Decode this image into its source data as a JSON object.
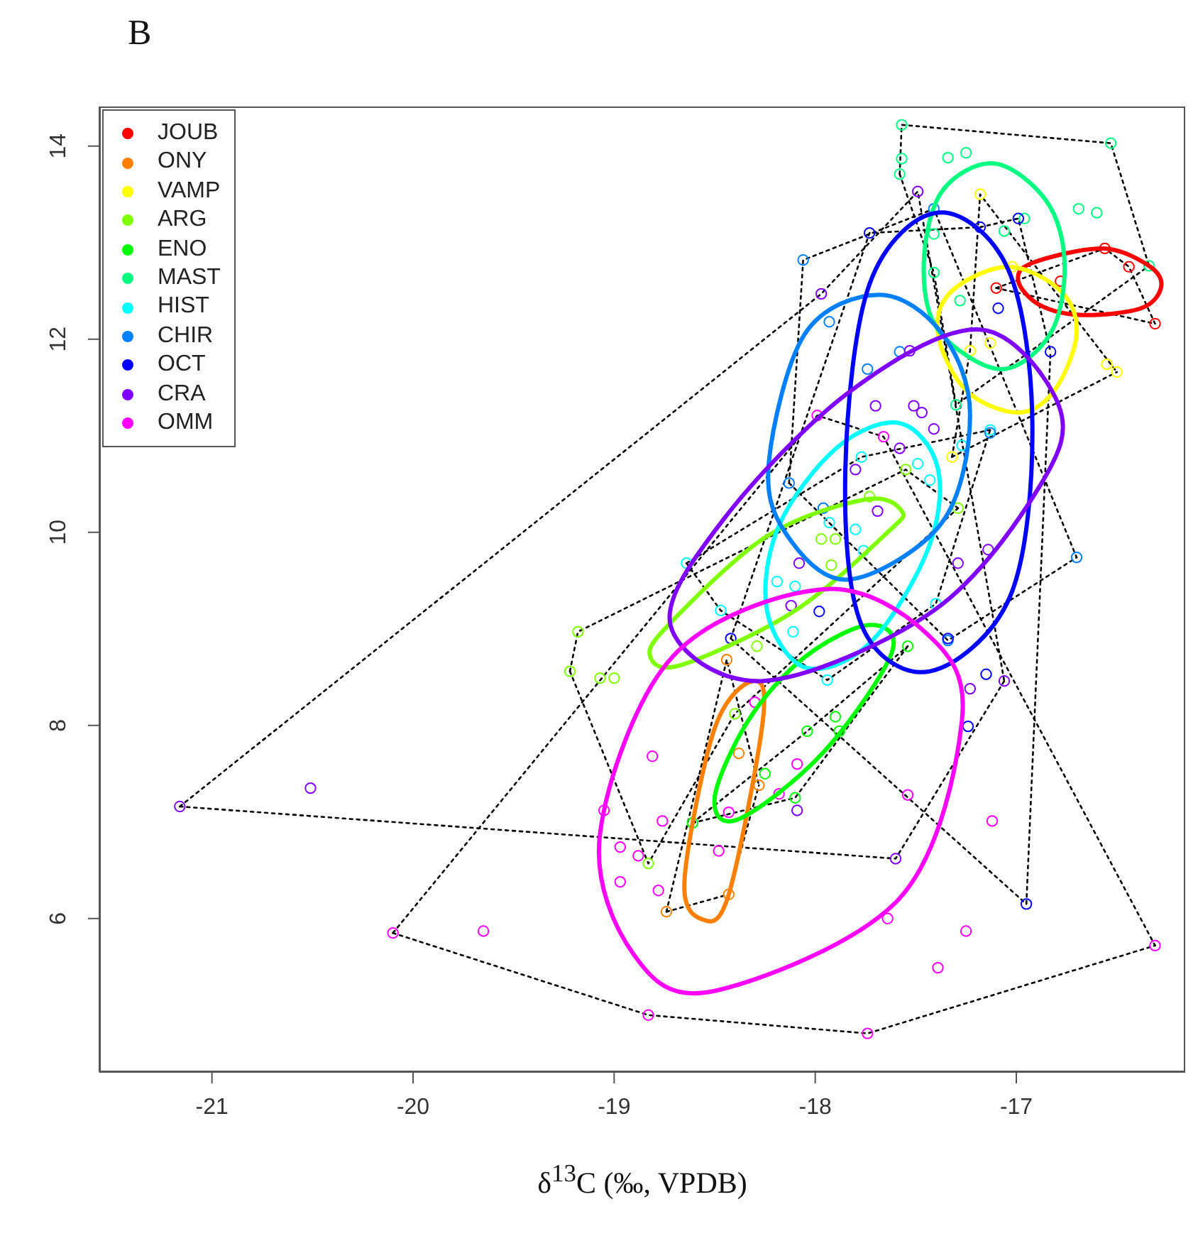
{
  "chart_data": {
    "type": "scatter",
    "title": "B",
    "xlabel": "δ$^{13}$C (‰, VPDB)",
    "xlim": [
      -21.56,
      -16.16
    ],
    "ylim": [
      4.41,
      14.41
    ],
    "xticks": [
      -21,
      -20,
      -19,
      -18,
      -17
    ],
    "yticks": [
      6,
      8,
      10,
      12,
      14
    ],
    "grid": false,
    "legend": "top left",
    "marker": "circle",
    "series": [
      {
        "type": "line",
        "marker": "none",
        "color": "#000000",
        "line_style": "dotted",
        "x": [
          -17.1,
          -16.56,
          -16.44,
          -16.31
        ],
        "values": [
          12.53,
          12.94,
          12.75,
          12.16
        ]
      },
      {
        "type": "line",
        "marker": "none",
        "color": "#000000",
        "line_style": "dotted",
        "x": [
          -17.1,
          -16.31
        ],
        "values": [
          12.53,
          12.16
        ]
      },
      {
        "type": "line",
        "marker": "none",
        "color": "#000000",
        "line_style": "dotted",
        "x": [
          -18.74,
          -18.44,
          -18.28
        ],
        "values": [
          6.07,
          8.68,
          7.38
        ]
      },
      {
        "type": "line",
        "marker": "none",
        "color": "#000000",
        "line_style": "dotted",
        "x": [
          -18.74,
          -18.43,
          -18.28
        ],
        "values": [
          6.07,
          6.25,
          7.38
        ]
      },
      {
        "type": "line",
        "marker": "none",
        "color": "#000000",
        "line_style": "dotted",
        "x": [
          -17.32,
          -17.23,
          -17.18,
          -16.5
        ],
        "values": [
          10.78,
          11.88,
          13.5,
          11.66
        ]
      },
      {
        "type": "line",
        "marker": "none",
        "color": "#000000",
        "line_style": "dotted",
        "x": [
          -17.32,
          -16.5
        ],
        "values": [
          10.78,
          11.66
        ]
      },
      {
        "type": "line",
        "marker": "none",
        "color": "#000000",
        "line_style": "dotted",
        "x": [
          -19.22,
          -19.18,
          -17.55,
          -17.29
        ],
        "values": [
          8.56,
          8.97,
          10.65,
          10.25
        ]
      },
      {
        "type": "line",
        "marker": "none",
        "color": "#000000",
        "line_style": "dotted",
        "x": [
          -19.22,
          -18.83,
          -18.4,
          -17.29
        ],
        "values": [
          8.56,
          6.57,
          8.12,
          10.25
        ]
      },
      {
        "type": "line",
        "marker": "none",
        "color": "#000000",
        "line_style": "dotted",
        "x": [
          -18.61,
          -18.04,
          -17.54
        ],
        "values": [
          6.99,
          7.94,
          8.82
        ]
      },
      {
        "type": "line",
        "marker": "none",
        "color": "#000000",
        "line_style": "dotted",
        "x": [
          -18.61,
          -18.1,
          -17.54
        ],
        "values": [
          6.99,
          7.25,
          8.82
        ]
      },
      {
        "type": "line",
        "marker": "none",
        "color": "#000000",
        "line_style": "dotted",
        "x": [
          -17.58,
          -17.57,
          -16.53,
          -16.34
        ],
        "values": [
          13.71,
          14.22,
          14.03,
          12.76
        ]
      },
      {
        "type": "line",
        "marker": "none",
        "color": "#000000",
        "line_style": "dotted",
        "x": [
          -17.58,
          -17.41,
          -17.3,
          -16.34
        ],
        "values": [
          13.71,
          12.69,
          11.32,
          12.76
        ]
      },
      {
        "type": "line",
        "marker": "none",
        "color": "#000000",
        "line_style": "dotted",
        "x": [
          -18.64,
          -17.77,
          -17.13
        ],
        "values": [
          9.68,
          10.78,
          11.06
        ]
      },
      {
        "type": "line",
        "marker": "none",
        "color": "#000000",
        "line_style": "dotted",
        "x": [
          -18.64,
          -18.47,
          -17.94,
          -17.4,
          -17.13
        ],
        "values": [
          9.68,
          9.19,
          8.47,
          9.26,
          11.06
        ]
      },
      {
        "type": "line",
        "marker": "none",
        "color": "#000000",
        "line_style": "dotted",
        "x": [
          -18.13,
          -18.06,
          -17.41,
          -16.7
        ],
        "values": [
          10.51,
          12.82,
          13.35,
          9.74
        ]
      },
      {
        "type": "line",
        "marker": "none",
        "color": "#000000",
        "line_style": "dotted",
        "x": [
          -18.13,
          -17.34,
          -16.7
        ],
        "values": [
          10.51,
          8.88,
          9.74
        ]
      },
      {
        "type": "line",
        "marker": "none",
        "color": "#000000",
        "line_style": "dotted",
        "x": [
          -18.42,
          -17.73,
          -17.18,
          -16.99,
          -16.83
        ],
        "values": [
          8.9,
          13.1,
          13.16,
          13.25,
          11.87
        ]
      },
      {
        "type": "line",
        "marker": "none",
        "color": "#000000",
        "line_style": "dotted",
        "x": [
          -18.42,
          -16.95,
          -16.83
        ],
        "values": [
          8.9,
          6.15,
          11.87
        ]
      },
      {
        "type": "line",
        "marker": "none",
        "color": "#000000",
        "line_style": "dotted",
        "x": [
          -21.16,
          -17.97,
          -17.49,
          -17.06
        ],
        "values": [
          7.16,
          12.47,
          13.53,
          8.46
        ]
      },
      {
        "type": "line",
        "marker": "none",
        "color": "#000000",
        "line_style": "dotted",
        "x": [
          -21.16,
          -17.6,
          -17.06
        ],
        "values": [
          7.16,
          6.62,
          8.46
        ]
      },
      {
        "type": "line",
        "marker": "none",
        "color": "#000000",
        "line_style": "dotted",
        "x": [
          -20.1,
          -17.99,
          -17.66,
          -16.31
        ],
        "values": [
          5.85,
          11.21,
          10.99,
          5.72
        ]
      },
      {
        "type": "line",
        "marker": "none",
        "color": "#000000",
        "line_style": "dotted",
        "x": [
          -20.1,
          -18.83,
          -17.74,
          -16.31
        ],
        "values": [
          5.85,
          5.0,
          4.81,
          5.72
        ]
      },
      {
        "name": "JOUB",
        "color": "#ff0000",
        "x": [
          -16.56,
          -16.44,
          -16.78,
          -17.1,
          -16.31
        ],
        "values": [
          12.94,
          12.75,
          12.6,
          12.53,
          12.16
        ]
      },
      {
        "name": "ONY",
        "color": "#ff8000",
        "x": [
          -18.44,
          -18.38,
          -18.28,
          -18.74,
          -18.43
        ],
        "values": [
          8.68,
          7.71,
          7.38,
          6.07,
          6.25
        ]
      },
      {
        "name": "VAMP",
        "color": "#ffff00",
        "x": [
          -17.18,
          -17.23,
          -17.13,
          -16.55,
          -16.5,
          -17.32,
          -17.02
        ],
        "values": [
          13.5,
          11.88,
          11.96,
          11.74,
          11.66,
          10.78,
          12.75
        ]
      },
      {
        "name": "ARG",
        "color": "#80ff00",
        "x": [
          -19.18,
          -19.22,
          -19.07,
          -19.0,
          -18.4,
          -18.83,
          -18.29,
          -17.97,
          -17.9,
          -17.92,
          -17.73,
          -17.55,
          -17.29
        ],
        "values": [
          8.97,
          8.56,
          8.49,
          8.49,
          8.12,
          6.57,
          8.82,
          9.93,
          9.93,
          9.66,
          10.37,
          10.65,
          10.25
        ]
      },
      {
        "name": "ENO",
        "color": "#00ff00",
        "x": [
          -18.04,
          -17.9,
          -17.88,
          -18.25,
          -18.1,
          -18.61,
          -17.54
        ],
        "values": [
          7.94,
          8.09,
          7.94,
          7.5,
          7.25,
          6.99,
          8.82
        ]
      },
      {
        "name": "MAST",
        "color": "#00ff80",
        "x": [
          -17.57,
          -16.53,
          -17.57,
          -17.58,
          -17.34,
          -17.25,
          -16.69,
          -16.6,
          -16.96,
          -17.06,
          -17.41,
          -17.41,
          -17.28,
          -17.3,
          -16.34
        ],
        "values": [
          14.22,
          14.03,
          13.87,
          13.71,
          13.88,
          13.93,
          13.35,
          13.31,
          13.25,
          13.12,
          13.09,
          12.69,
          12.4,
          11.32,
          12.76
        ]
      },
      {
        "name": "HIST",
        "color": "#00ffff",
        "x": [
          -17.13,
          -17.27,
          -17.49,
          -17.77,
          -17.43,
          -17.93,
          -17.8,
          -17.76,
          -18.19,
          -18.1,
          -18.47,
          -18.11,
          -17.94,
          -17.4,
          -18.64
        ],
        "values": [
          11.06,
          10.9,
          10.71,
          10.78,
          10.54,
          10.1,
          10.03,
          9.81,
          9.49,
          9.44,
          9.19,
          8.97,
          8.47,
          9.26,
          9.68
        ]
      },
      {
        "name": "CHIR",
        "color": "#0080ff",
        "x": [
          -18.06,
          -17.74,
          -17.58,
          -18.13,
          -17.93,
          -16.7,
          -17.13,
          -17.41,
          -17.34,
          -17.96
        ],
        "values": [
          12.82,
          11.69,
          11.87,
          10.51,
          12.18,
          9.74,
          11.03,
          13.35,
          8.88,
          10.25
        ]
      },
      {
        "name": "OCT",
        "color": "#0000ff",
        "x": [
          -16.95,
          -17.15,
          -17.24,
          -17.34,
          -17.98,
          -18.42,
          -16.99,
          -17.18,
          -17.09,
          -16.83,
          -17.73
        ],
        "values": [
          6.15,
          8.53,
          7.99,
          8.9,
          9.18,
          8.9,
          13.25,
          13.16,
          12.32,
          11.87,
          13.1
        ]
      },
      {
        "name": "CRA",
        "color": "#8000ff",
        "x": [
          -21.16,
          -20.51,
          -17.6,
          -18.09,
          -17.23,
          -17.06,
          -17.29,
          -17.14,
          -17.49,
          -17.97,
          -17.53,
          -17.7,
          -17.51,
          -17.47,
          -17.41,
          -17.58,
          -17.8,
          -17.69,
          -18.08,
          -18.12
        ],
        "values": [
          7.16,
          7.35,
          6.62,
          7.12,
          8.38,
          8.46,
          9.68,
          9.82,
          13.53,
          12.47,
          11.88,
          11.31,
          11.31,
          11.24,
          11.07,
          10.87,
          10.65,
          10.22,
          9.68,
          9.24
        ]
      },
      {
        "name": "OMM",
        "color": "#ff00ff",
        "x": [
          -20.1,
          -19.65,
          -18.83,
          -17.74,
          -16.31,
          -17.39,
          -17.25,
          -17.64,
          -17.12,
          -17.54,
          -18.81,
          -19.05,
          -18.97,
          -18.88,
          -18.97,
          -18.78,
          -18.76,
          -18.48,
          -18.43,
          -18.18,
          -18.09,
          -18.3,
          -17.99,
          -17.66
        ],
        "values": [
          5.85,
          5.87,
          5.0,
          4.81,
          5.72,
          5.49,
          5.87,
          6.0,
          7.01,
          7.28,
          7.68,
          7.12,
          6.74,
          6.65,
          6.38,
          6.29,
          7.01,
          6.7,
          7.1,
          7.29,
          7.6,
          8.24,
          11.21,
          10.99
        ]
      }
    ]
  }
}
